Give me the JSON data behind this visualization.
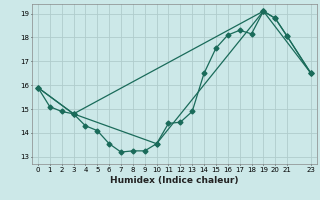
{
  "xlabel": "Humidex (Indice chaleur)",
  "bg_color": "#cce8e8",
  "line_color": "#1a6b5a",
  "grid_color": "#b0cccc",
  "xlim": [
    -0.5,
    23.5
  ],
  "ylim": [
    12.7,
    19.4
  ],
  "xticks": [
    0,
    1,
    2,
    3,
    4,
    5,
    6,
    7,
    8,
    9,
    10,
    11,
    12,
    13,
    14,
    15,
    16,
    17,
    18,
    19,
    20,
    21,
    23
  ],
  "yticks": [
    13,
    14,
    15,
    16,
    17,
    18,
    19
  ],
  "line1_x": [
    0,
    1,
    2,
    3,
    4,
    5,
    6,
    7,
    8,
    9,
    10,
    11,
    12,
    13,
    14,
    15,
    16,
    17,
    18,
    19,
    20,
    21,
    23
  ],
  "line1_y": [
    15.9,
    15.1,
    14.9,
    14.8,
    14.3,
    14.1,
    13.55,
    13.2,
    13.25,
    13.25,
    13.55,
    14.4,
    14.45,
    14.9,
    16.5,
    17.55,
    18.1,
    18.3,
    18.15,
    19.1,
    18.8,
    18.05,
    16.5
  ],
  "line2_x": [
    0,
    3,
    10,
    19,
    20,
    21,
    23
  ],
  "line2_y": [
    15.9,
    14.8,
    13.55,
    19.1,
    18.8,
    18.05,
    16.5
  ],
  "line3_x": [
    0,
    3,
    19,
    23
  ],
  "line3_y": [
    15.9,
    14.8,
    19.1,
    16.5
  ]
}
